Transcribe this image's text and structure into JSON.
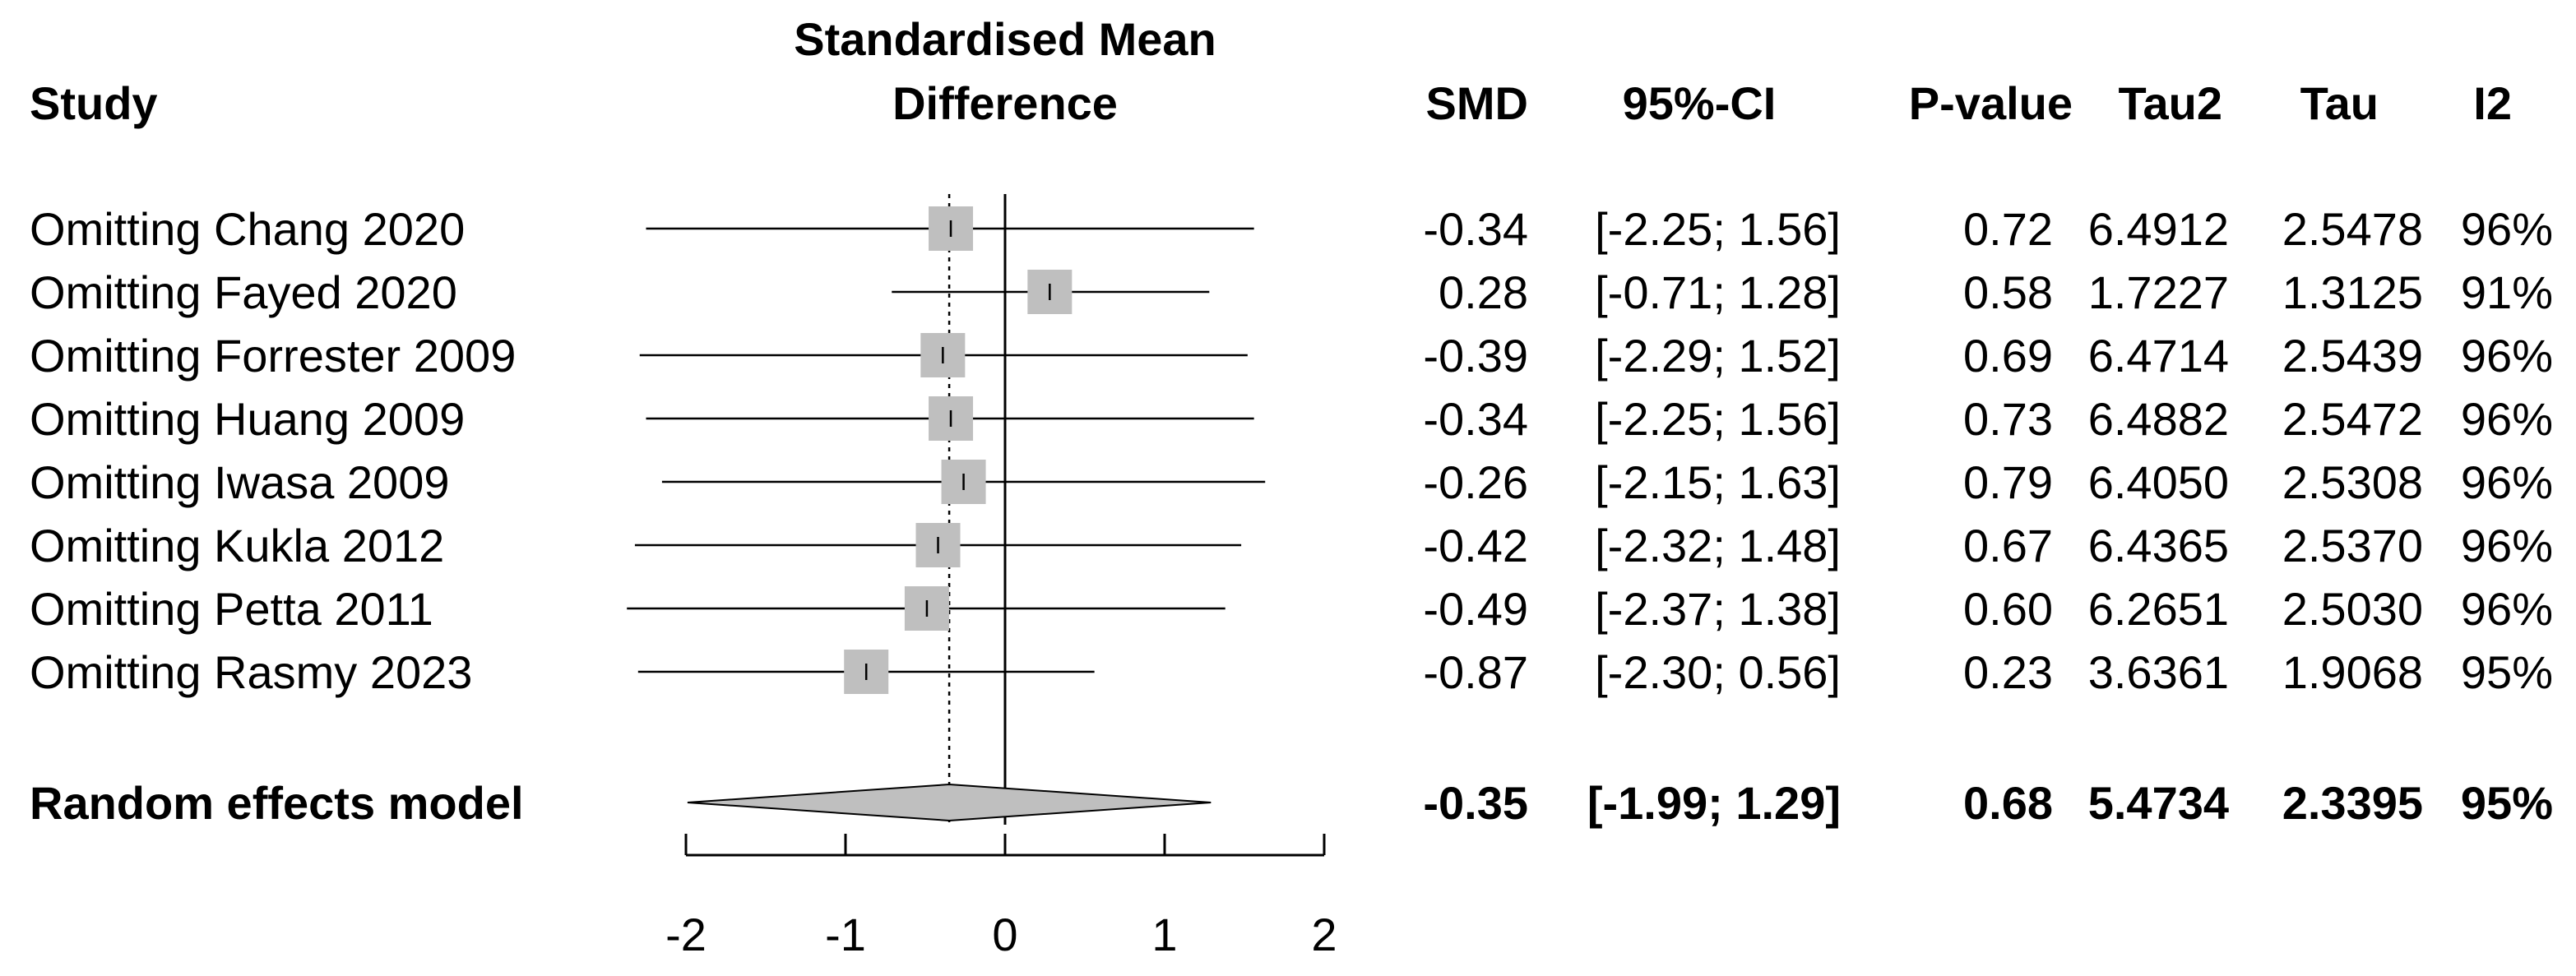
{
  "chart_data": {
    "type": "forest",
    "title": "Standardised Mean Difference",
    "headers": {
      "study": "Study",
      "plot_line1": "Standardised Mean",
      "plot_line2": "Difference",
      "smd": "SMD",
      "ci": "95%-CI",
      "pvalue": "P-value",
      "tau2": "Tau2",
      "tau": "Tau",
      "i2": "I2"
    },
    "xlim": [
      -2,
      2
    ],
    "ticks": [
      "-2",
      "-1",
      "0",
      "1",
      "2"
    ],
    "tick_values": [
      -2,
      -1,
      0,
      1,
      2
    ],
    "reference_line": 0,
    "pooled_line": -0.35,
    "studies": [
      {
        "label": "Omitting Chang  2020",
        "smd": -0.34,
        "lower": -2.25,
        "upper": 1.56,
        "smd_text": "-0.34",
        "ci_text": "[-2.25; 1.56]",
        "p": "0.72",
        "tau2": "6.4912",
        "tau": "2.5478",
        "i2": "96%"
      },
      {
        "label": "Omitting Fayed  2020",
        "smd": 0.28,
        "lower": -0.71,
        "upper": 1.28,
        "smd_text": "0.28",
        "ci_text": "[-0.71; 1.28]",
        "p": "0.58",
        "tau2": "1.7227",
        "tau": "1.3125",
        "i2": "91%"
      },
      {
        "label": "Omitting Forrester  2009",
        "smd": -0.39,
        "lower": -2.29,
        "upper": 1.52,
        "smd_text": "-0.39",
        "ci_text": "[-2.29; 1.52]",
        "p": "0.69",
        "tau2": "6.4714",
        "tau": "2.5439",
        "i2": "96%"
      },
      {
        "label": "Omitting Huang  2009",
        "smd": -0.34,
        "lower": -2.25,
        "upper": 1.56,
        "smd_text": "-0.34",
        "ci_text": "[-2.25; 1.56]",
        "p": "0.73",
        "tau2": "6.4882",
        "tau": "2.5472",
        "i2": "96%"
      },
      {
        "label": "Omitting Iwasa  2009",
        "smd": -0.26,
        "lower": -2.15,
        "upper": 1.63,
        "smd_text": "-0.26",
        "ci_text": "[-2.15; 1.63]",
        "p": "0.79",
        "tau2": "6.4050",
        "tau": "2.5308",
        "i2": "96%"
      },
      {
        "label": "Omitting Kukla  2012",
        "smd": -0.42,
        "lower": -2.32,
        "upper": 1.48,
        "smd_text": "-0.42",
        "ci_text": "[-2.32; 1.48]",
        "p": "0.67",
        "tau2": "6.4365",
        "tau": "2.5370",
        "i2": "96%"
      },
      {
        "label": "Omitting Petta  2011",
        "smd": -0.49,
        "lower": -2.37,
        "upper": 1.38,
        "smd_text": "-0.49",
        "ci_text": "[-2.37; 1.38]",
        "p": "0.60",
        "tau2": "6.2651",
        "tau": "2.5030",
        "i2": "96%"
      },
      {
        "label": "Omitting Rasmy 2023",
        "smd": -0.87,
        "lower": -2.3,
        "upper": 0.56,
        "smd_text": "-0.87",
        "ci_text": "[-2.30; 0.56]",
        "p": "0.23",
        "tau2": "3.6361",
        "tau": "1.9068",
        "i2": "95%"
      }
    ],
    "pooled": {
      "label": "Random effects model",
      "smd": -0.35,
      "lower": -1.99,
      "upper": 1.29,
      "smd_text": "-0.35",
      "ci_text": "[-1.99; 1.29]",
      "p": "0.68",
      "tau2": "5.4734",
      "tau": "2.3395",
      "i2": "95%"
    },
    "colors": {
      "square": "#bfbfbf",
      "diamond": "#bfbfbf",
      "line": "#000000"
    }
  }
}
